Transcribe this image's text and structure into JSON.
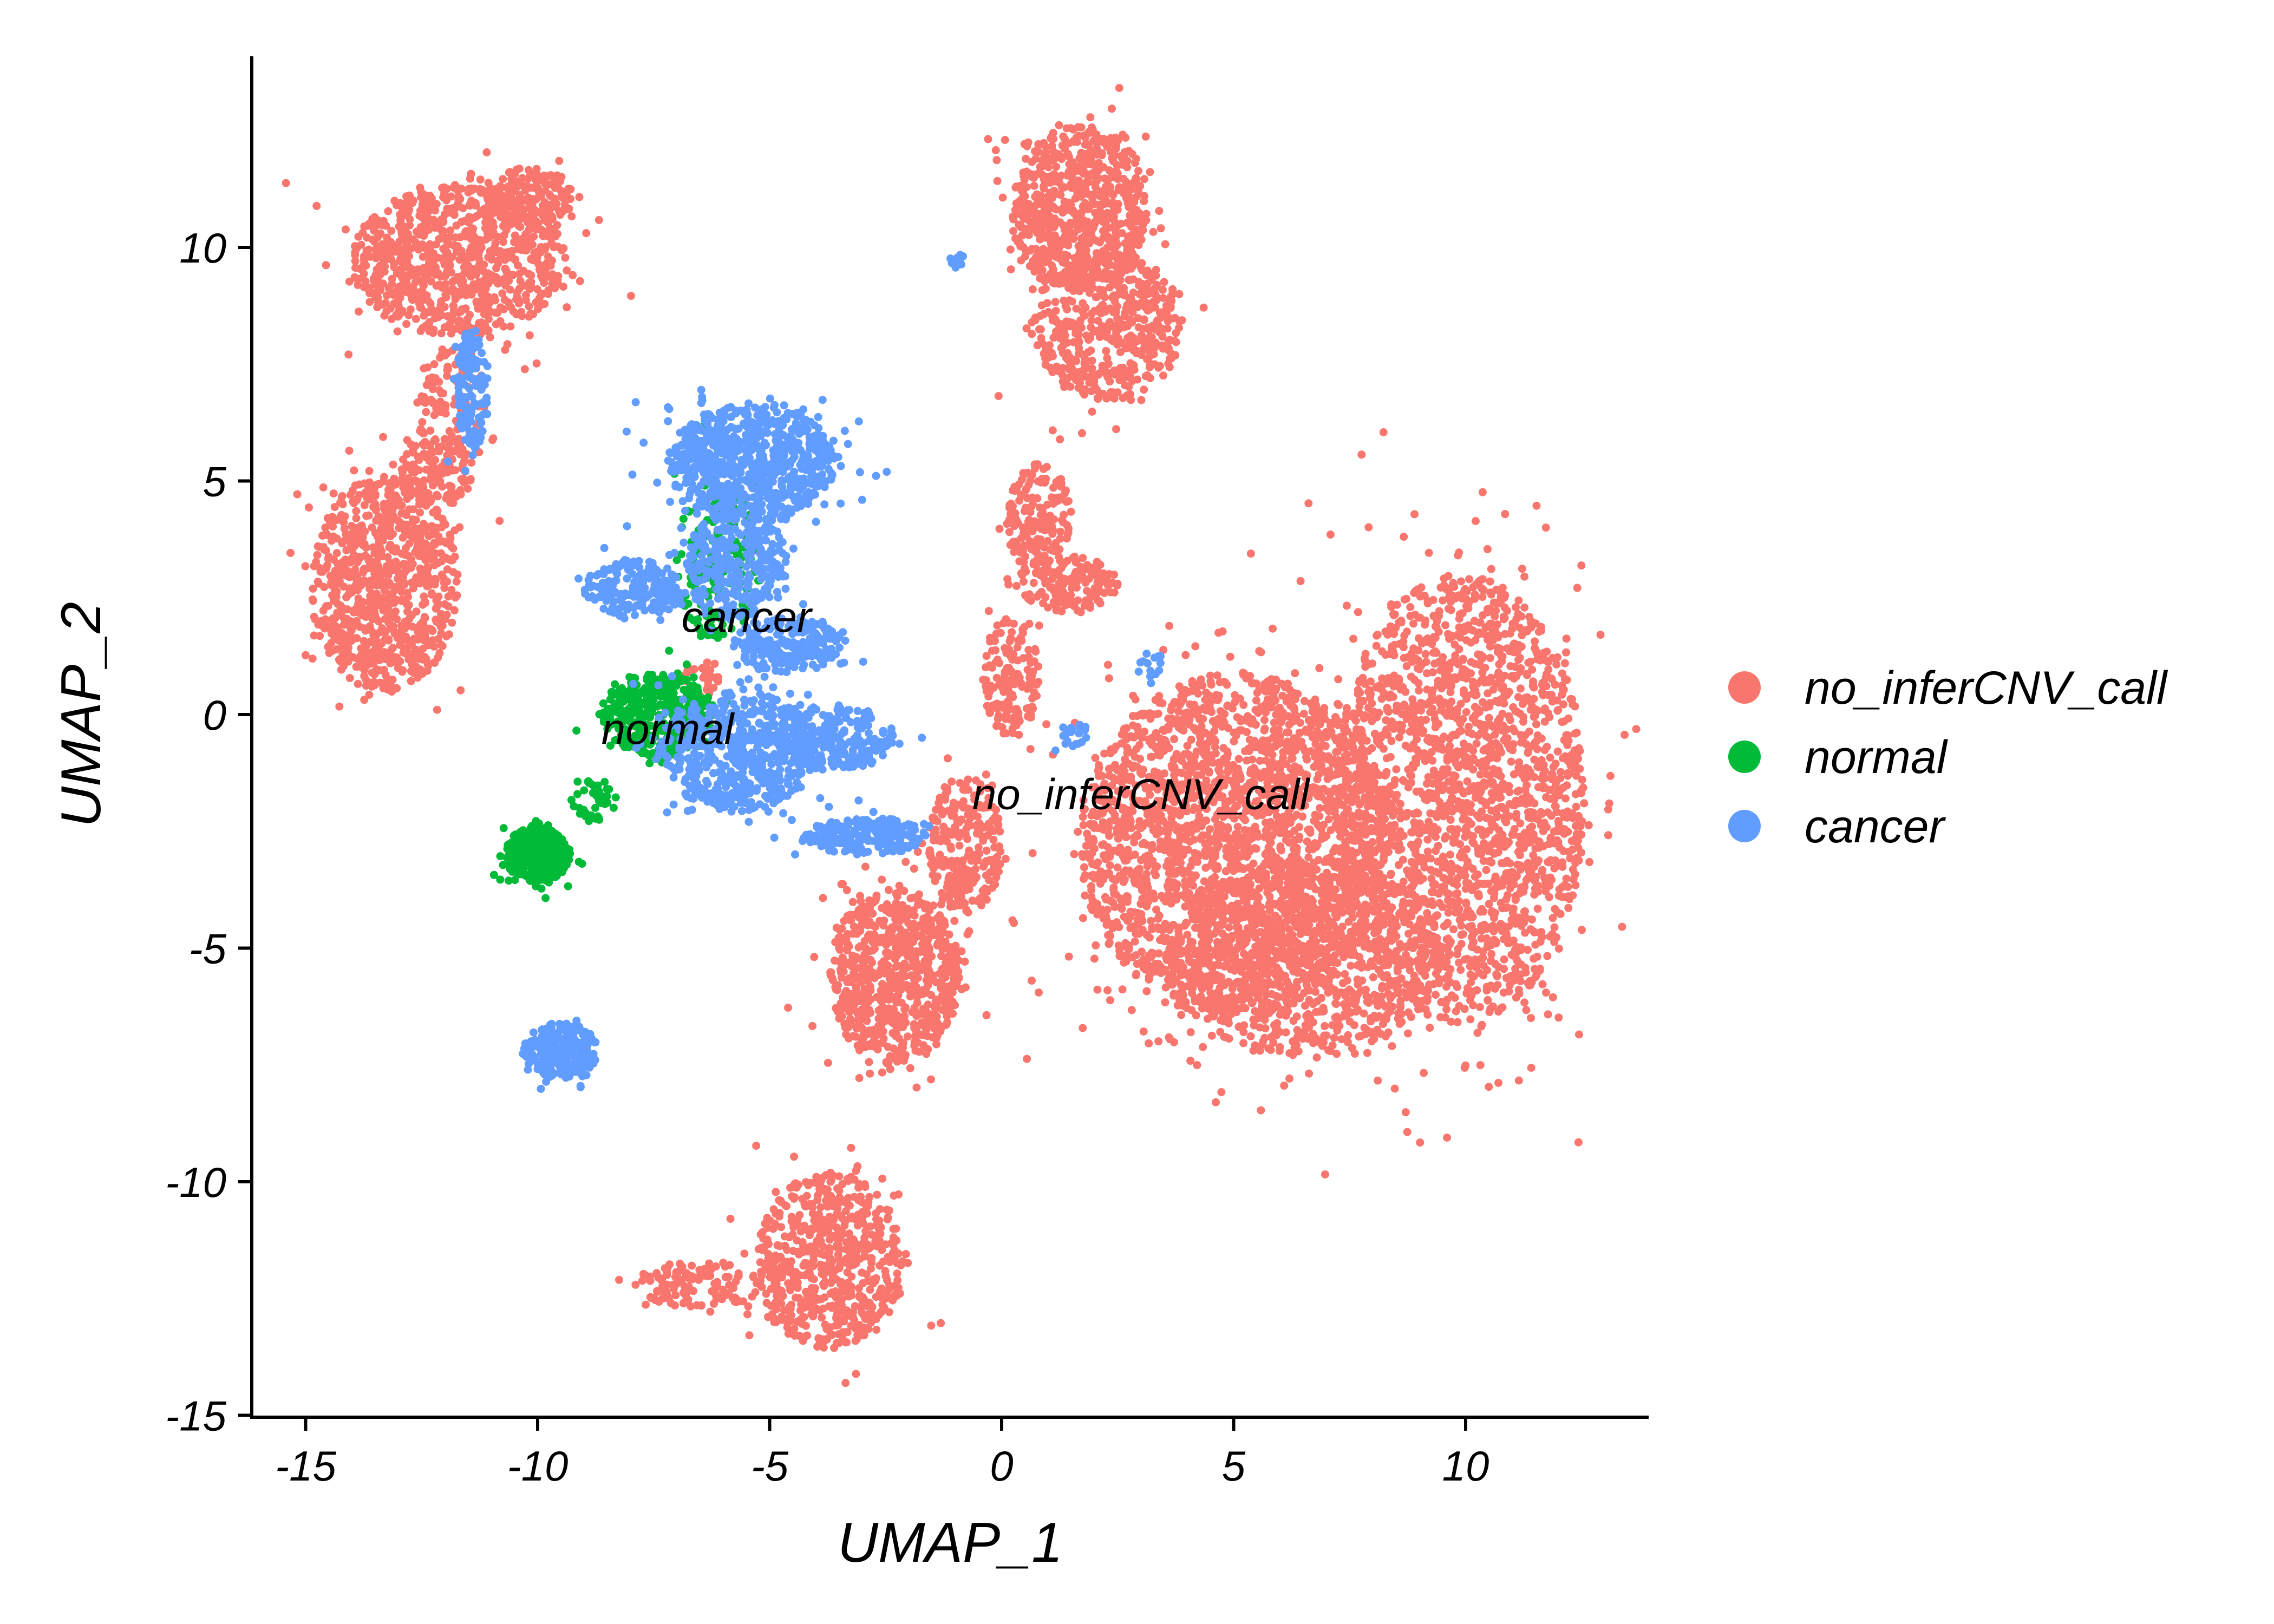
{
  "chart_data": {
    "type": "scatter",
    "title": "",
    "xlabel": "UMAP_1",
    "ylabel": "UMAP_2",
    "xlim": [
      -16.5,
      14
    ],
    "ylim": [
      -15.2,
      14.5
    ],
    "xticks": [
      -15,
      -10,
      -5,
      0,
      5,
      10
    ],
    "yticks": [
      -15,
      -10,
      -5,
      0,
      5,
      10
    ],
    "xtick_labels": [
      "-15",
      "-10",
      "-5",
      "0",
      "5",
      "10"
    ],
    "ytick_labels": [
      "-15",
      "-10",
      "-5",
      "0",
      "5",
      "10"
    ],
    "grid": false,
    "legend_position": "right",
    "legend": [
      {
        "name": "no_inferCNV_call",
        "color": "#F8766D"
      },
      {
        "name": "normal",
        "color": "#00BA38"
      },
      {
        "name": "cancer",
        "color": "#619CFF"
      }
    ],
    "cluster_labels": [
      {
        "text": "cancer",
        "x": -5.5,
        "y": 2.1
      },
      {
        "text": "normal",
        "x": -7.2,
        "y": -0.3
      },
      {
        "text": "no_inferCNV_call",
        "x": 3,
        "y": -1.7
      }
    ],
    "series": [
      {
        "name": "no_inferCNV_call",
        "color": "#F8766D",
        "clusters": [
          {
            "cx": -11.7,
            "cy": 9.7,
            "rx": 2.3,
            "ry": 1.6,
            "n": 900
          },
          {
            "cx": -10.2,
            "cy": 11.1,
            "rx": 1.0,
            "ry": 0.6,
            "n": 150
          },
          {
            "cx": -11.8,
            "cy": 6.6,
            "rx": 0.8,
            "ry": 1.4,
            "n": 120
          },
          {
            "cx": -13.3,
            "cy": 2.8,
            "rx": 1.6,
            "ry": 2.3,
            "n": 850
          },
          {
            "cx": -12.2,
            "cy": 5.2,
            "rx": 0.8,
            "ry": 0.8,
            "n": 130
          },
          {
            "cx": 1.7,
            "cy": 10.8,
            "rx": 1.5,
            "ry": 1.8,
            "n": 700
          },
          {
            "cx": 2.3,
            "cy": 8.3,
            "rx": 1.6,
            "ry": 1.6,
            "n": 500
          },
          {
            "cx": 0.8,
            "cy": 4.2,
            "rx": 0.7,
            "ry": 1.2,
            "n": 160
          },
          {
            "cx": 1.4,
            "cy": 2.8,
            "rx": 1.1,
            "ry": 0.6,
            "n": 160
          },
          {
            "cx": 0.2,
            "cy": 0.8,
            "rx": 0.6,
            "ry": 1.3,
            "n": 150
          },
          {
            "cx": -0.8,
            "cy": -2.8,
            "rx": 0.8,
            "ry": 1.5,
            "n": 260
          },
          {
            "cx": -2.3,
            "cy": -5.6,
            "rx": 1.4,
            "ry": 1.9,
            "n": 750
          },
          {
            "cx": 5.0,
            "cy": -2.8,
            "rx": 3.3,
            "ry": 3.7,
            "n": 2400
          },
          {
            "cx": 9.9,
            "cy": -1.8,
            "rx": 2.7,
            "ry": 4.8,
            "n": 2100
          },
          {
            "cx": 6.5,
            "cy": -5.2,
            "rx": 3.0,
            "ry": 2.1,
            "n": 900
          },
          {
            "cx": -3.7,
            "cy": -11.7,
            "rx": 1.6,
            "ry": 1.9,
            "n": 650
          },
          {
            "cx": -6.5,
            "cy": -12.2,
            "rx": 1.4,
            "ry": 0.5,
            "n": 130
          },
          {
            "cx": -6.5,
            "cy": 0.8,
            "rx": 0.4,
            "ry": 0.4,
            "n": 30
          }
        ]
      },
      {
        "name": "normal",
        "color": "#00BA38",
        "clusters": [
          {
            "cx": -10.0,
            "cy": -3.0,
            "rx": 0.7,
            "ry": 0.6,
            "n": 450
          },
          {
            "cx": -7.4,
            "cy": 0.0,
            "rx": 1.2,
            "ry": 0.9,
            "n": 420
          },
          {
            "cx": -6.1,
            "cy": 3.3,
            "rx": 0.9,
            "ry": 1.7,
            "n": 180
          },
          {
            "cx": -8.8,
            "cy": -1.8,
            "rx": 0.5,
            "ry": 0.5,
            "n": 40
          }
        ]
      },
      {
        "name": "cancer",
        "color": "#619CFF",
        "clusters": [
          {
            "cx": -5.4,
            "cy": 5.4,
            "rx": 1.8,
            "ry": 1.3,
            "n": 800
          },
          {
            "cx": -5.7,
            "cy": 3.2,
            "rx": 1.1,
            "ry": 1.2,
            "n": 300
          },
          {
            "cx": -7.9,
            "cy": 2.7,
            "rx": 1.1,
            "ry": 0.6,
            "n": 220
          },
          {
            "cx": -4.6,
            "cy": 1.5,
            "rx": 1.2,
            "ry": 0.6,
            "n": 220
          },
          {
            "cx": -5.7,
            "cy": -0.8,
            "rx": 1.7,
            "ry": 1.3,
            "n": 550
          },
          {
            "cx": -3.6,
            "cy": -0.5,
            "rx": 1.3,
            "ry": 0.7,
            "n": 260
          },
          {
            "cx": -2.9,
            "cy": -2.6,
            "rx": 1.3,
            "ry": 0.4,
            "n": 200
          },
          {
            "cx": -9.5,
            "cy": -7.2,
            "rx": 0.8,
            "ry": 0.6,
            "n": 260
          },
          {
            "cx": -11.4,
            "cy": 7.0,
            "rx": 0.35,
            "ry": 1.3,
            "n": 120
          },
          {
            "cx": 1.6,
            "cy": -0.4,
            "rx": 0.3,
            "ry": 0.4,
            "n": 20
          },
          {
            "cx": 3.2,
            "cy": 1.0,
            "rx": 0.3,
            "ry": 0.4,
            "n": 15
          },
          {
            "cx": -1.0,
            "cy": 9.7,
            "rx": 0.2,
            "ry": 0.2,
            "n": 10
          }
        ]
      }
    ]
  }
}
